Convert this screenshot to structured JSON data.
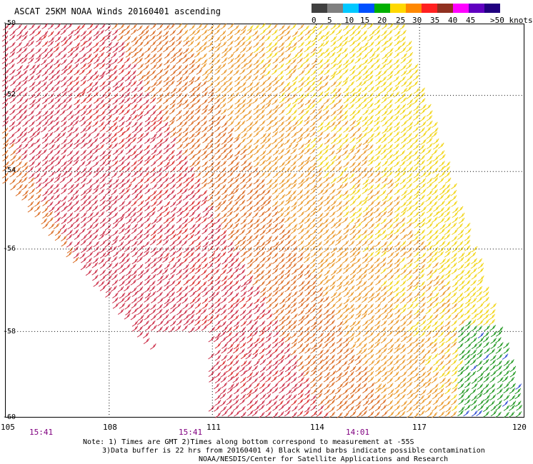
{
  "header": {
    "title": "ASCAT 25KM NOAA Winds 20160401 ascending"
  },
  "legend": {
    "unit_label": ">50 knots",
    "swatches": [
      {
        "label": "0",
        "color": "#404040"
      },
      {
        "label": "5",
        "color": "#808080"
      },
      {
        "label": "10",
        "color": "#00c8ff"
      },
      {
        "label": "15",
        "color": "#0050ff"
      },
      {
        "label": "20",
        "color": "#00b000"
      },
      {
        "label": "25",
        "color": "#ffd800"
      },
      {
        "label": "30",
        "color": "#ff8800"
      },
      {
        "label": "35",
        "color": "#ff2020"
      },
      {
        "label": "40",
        "color": "#903020"
      },
      {
        "label": "45",
        "color": "#ff00ff"
      },
      {
        "label": "",
        "color": "#6000c0"
      },
      {
        "label": "",
        "color": "#200080"
      }
    ]
  },
  "map": {
    "lat_labels": [
      "-50",
      "-52",
      "-54",
      "-56",
      "-58",
      "-60"
    ],
    "lon_labels": [
      "105",
      "108",
      "111",
      "114",
      "117",
      "120"
    ],
    "pass_times": [
      "15:41",
      "15:41",
      "14:01"
    ],
    "colors": {
      "yellow": "#f0d000",
      "orange": "#e8901a",
      "dark_orange": "#d86010",
      "red": "#d82020",
      "crimson": "#c8203c",
      "green": "#109010",
      "blue": "#2040d0",
      "grid": "#000000"
    }
  },
  "footer": {
    "note_line1": "Note: 1) Times are GMT 2)Times along bottom correspond to measurement at -55S",
    "note_line2": "3)Data buffer is 22 hrs from 20160401 4) Black wind barbs indicate possible contamination",
    "note_line3": "NOAA/NESDIS/Center for Satellite Applications and Research"
  }
}
